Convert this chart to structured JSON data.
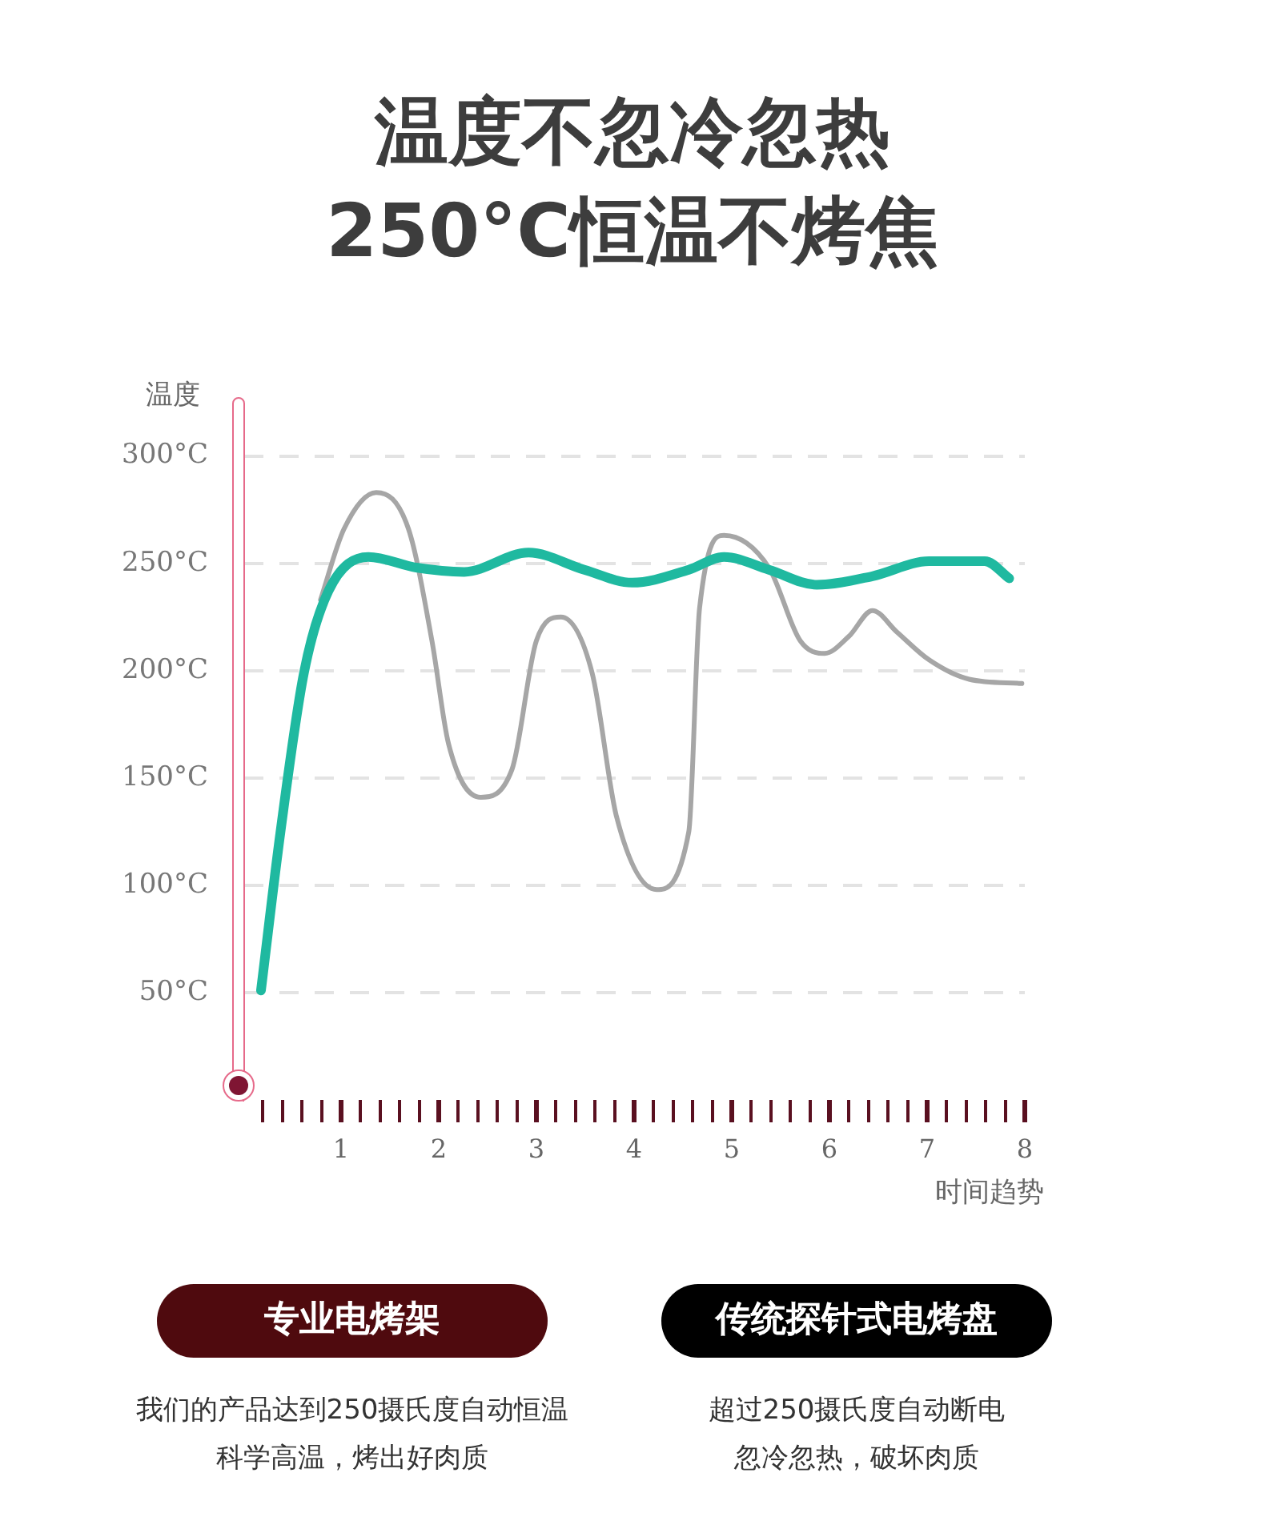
{
  "chart_data": {
    "type": "line",
    "title": "温度不忽冷忽热",
    "subtitle": "250°C恒温不烤焦",
    "ylabel": "温度",
    "xlabel": "时间趋势",
    "xlim": [
      0,
      8
    ],
    "xticks": [
      {
        "value": 0.2,
        "label": null
      },
      {
        "value": 0.4,
        "label": null
      },
      {
        "value": 0.6,
        "label": null
      },
      {
        "value": 0.8,
        "label": null
      },
      1,
      {
        "value": 1.2,
        "label": null
      },
      {
        "value": 1.4,
        "label": null
      },
      {
        "value": 1.6,
        "label": null
      },
      {
        "value": 1.8,
        "label": null
      },
      2,
      {
        "value": 2.2,
        "label": null
      },
      {
        "value": 2.4,
        "label": null
      },
      {
        "value": 2.6,
        "label": null
      },
      {
        "value": 2.8,
        "label": null
      },
      3,
      {
        "value": 3.2,
        "label": null
      },
      {
        "value": 3.4,
        "label": null
      },
      {
        "value": 3.6,
        "label": null
      },
      {
        "value": 3.8,
        "label": null
      },
      4,
      {
        "value": 4.2,
        "label": null
      },
      {
        "value": 4.4,
        "label": null
      },
      {
        "value": 4.6,
        "label": null
      },
      {
        "value": 4.8,
        "label": null
      },
      5,
      {
        "value": 5.2,
        "label": null
      },
      {
        "value": 5.4,
        "label": null
      },
      {
        "value": 5.6,
        "label": null
      },
      {
        "value": 5.8,
        "label": null
      },
      6,
      {
        "value": 6.2,
        "label": null
      },
      {
        "value": 6.4,
        "label": null
      },
      {
        "value": 6.6,
        "label": null
      },
      {
        "value": 6.8,
        "label": null
      },
      7,
      {
        "value": 7.2,
        "label": null
      },
      {
        "value": 7.4,
        "label": null
      },
      {
        "value": 7.6,
        "label": null
      },
      {
        "value": 7.8,
        "label": null
      },
      8
    ],
    "ylim": [
      0,
      320
    ],
    "yticks": [
      {
        "value": 50,
        "label": "50°C"
      },
      {
        "value": 100,
        "label": "100°C"
      },
      {
        "value": 150,
        "label": "150°C"
      },
      {
        "value": 200,
        "label": "200°C"
      },
      {
        "value": 250,
        "label": "250°C"
      },
      {
        "value": 300,
        "label": "300°C"
      }
    ],
    "grid": "y",
    "legend": false,
    "marker": "none",
    "line_style": "solid",
    "series": [
      {
        "color": "#a6a6a6",
        "x": [
          0.79,
          1.03,
          1.36,
          1.69,
          1.93,
          2.1,
          2.43,
          2.75,
          3.0,
          3.25,
          3.57,
          3.82,
          4.23,
          4.56,
          4.67,
          4.92,
          5.38,
          5.7,
          5.95,
          6.2,
          6.44,
          6.69,
          7.02,
          7.43,
          7.97
        ],
        "values": [
          233,
          266,
          283,
          266,
          214,
          166,
          141,
          154,
          214,
          225,
          199,
          132,
          98,
          125,
          229,
          263,
          248,
          214,
          208,
          216,
          228,
          218,
          205,
          196,
          194
        ]
      },
      {
        "color": "#1fb9a0",
        "x": [
          0.18,
          0.38,
          0.62,
          0.87,
          1.28,
          1.77,
          2.26,
          2.92,
          3.49,
          3.98,
          4.56,
          4.92,
          5.38,
          5.87,
          6.44,
          7.02,
          7.59,
          7.84
        ],
        "values": [
          51,
          125,
          199,
          237,
          253,
          248,
          246,
          255,
          247,
          241,
          247,
          253,
          247,
          240,
          244,
          251,
          251,
          243
        ]
      }
    ],
    "annotations": [
      "专业电烤架",
      "我们的产品达到250摄氏度自动恒温",
      "科学高温，烤出好肉质",
      "传统探针式电烤盘",
      "超过250摄氏度自动断电",
      "忽冷忽热，破坏肉质"
    ]
  }
}
